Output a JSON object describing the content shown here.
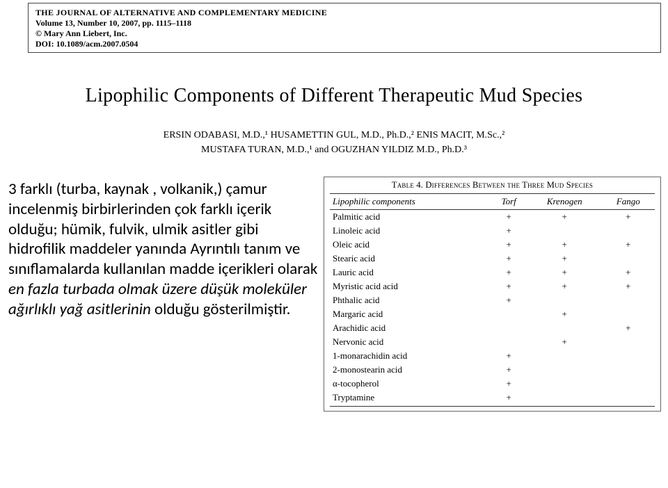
{
  "header": {
    "journal": "THE JOURNAL OF ALTERNATIVE AND COMPLEMENTARY MEDICINE",
    "volume": "Volume 13, Number 10, 2007, pp. 1115–1118",
    "publisher": "© Mary Ann Liebert, Inc.",
    "doi": "DOI: 10.1089/acm.2007.0504"
  },
  "title": "Lipophilic Components of Different Therapeutic Mud Species",
  "authors_line1": "ERSIN ODABASI, M.D.,¹ HUSAMETTIN GUL, M.D., Ph.D.,² ENIS MACIT, M.Sc.,²",
  "authors_line2": "MUSTAFA TURAN, M.D.,¹ and OGUZHAN YILDIZ M.D., Ph.D.³",
  "summary": {
    "part1": "3 farklı (turba, kaynak , volkanik,) çamur incelenmiş birbirlerinden çok farklı içerik olduğu; hümik, fulvik, ulmik asitler gibi hidrofilik maddeler yanında Ayrıntılı tanım ve sınıflamalarda kullanılan madde içerikleri olarak ",
    "emph": "en fazla turbada olmak üzere düşük moleküler ağırlıklı yağ asitlerinin",
    "part2": " olduğu gösterilmiştir."
  },
  "table": {
    "caption_prefix": "Table 4.",
    "caption_rest": " Differences Between the Three Mud Species",
    "columns": [
      "Lipophilic components",
      "Torf",
      "Krenogen",
      "Fango"
    ],
    "rows": [
      [
        "Palmitic acid",
        "+",
        "+",
        "+"
      ],
      [
        "Linoleic acid",
        "+",
        "",
        ""
      ],
      [
        "Oleic acid",
        "+",
        "+",
        "+"
      ],
      [
        "Stearic acid",
        "+",
        "+",
        ""
      ],
      [
        "Lauric acid",
        "+",
        "+",
        "+"
      ],
      [
        "Myristic acid acid",
        "+",
        "+",
        "+"
      ],
      [
        "Phthalic acid",
        "+",
        "",
        ""
      ],
      [
        "Margaric acid",
        "",
        "+",
        ""
      ],
      [
        "Arachidic acid",
        "",
        "",
        "+"
      ],
      [
        "Nervonic acid",
        "",
        "+",
        ""
      ],
      [
        "1-monarachidin acid",
        "+",
        "",
        ""
      ],
      [
        "2-monostearin acid",
        "+",
        "",
        ""
      ],
      [
        "α-tocopherol",
        "+",
        "",
        ""
      ],
      [
        "Tryptamine",
        "+",
        "",
        ""
      ]
    ]
  }
}
